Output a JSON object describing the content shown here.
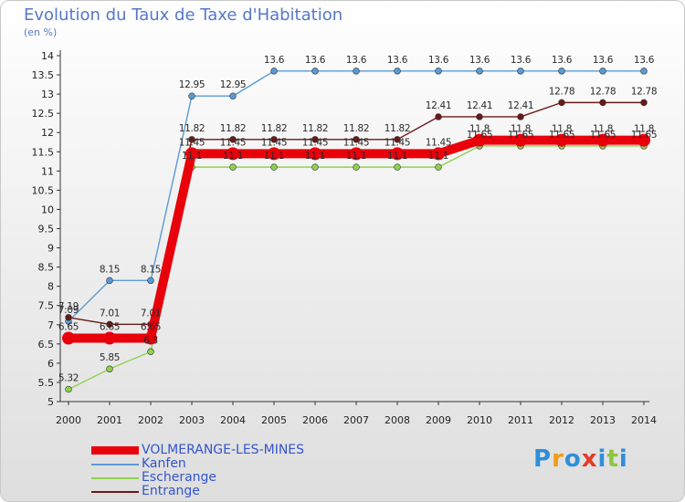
{
  "chart_data": {
    "type": "line",
    "title": "Evolution du Taux de Taxe d'Habitation",
    "ylabel": "(en %)",
    "xlabel": "",
    "ylim": [
      5,
      14
    ],
    "yticks": [
      "5",
      "5.5",
      "6",
      "6.5",
      "7",
      "7.5",
      "8",
      "8.5",
      "9",
      "9.5",
      "10",
      "10.5",
      "11",
      "11.5",
      "12",
      "12.5",
      "13",
      "13.5",
      "14"
    ],
    "categories": [
      "2000",
      "2001",
      "2002",
      "2003",
      "2004",
      "2005",
      "2006",
      "2007",
      "2008",
      "2009",
      "2010",
      "2011",
      "2012",
      "2013",
      "2014"
    ],
    "grid": false,
    "series": [
      {
        "name": "Kanfen",
        "color": "#5b9bd5",
        "values": [
          7.09,
          8.15,
          8.15,
          12.95,
          12.95,
          13.6,
          13.6,
          13.6,
          13.6,
          13.6,
          13.6,
          13.6,
          13.6,
          13.6,
          13.6
        ],
        "labels": [
          "7.09",
          "8.15",
          "8.15",
          "12.95",
          "12.95",
          "13.6",
          "13.6",
          "13.6",
          "13.6",
          "13.6",
          "13.6",
          "13.6",
          "13.6",
          "13.6",
          "13.6"
        ]
      },
      {
        "name": "Escherange",
        "color": "#8fd14f",
        "values": [
          5.32,
          5.85,
          6.3,
          11.1,
          11.1,
          11.1,
          11.1,
          11.1,
          11.1,
          11.1,
          11.65,
          11.65,
          11.65,
          11.65,
          11.65
        ],
        "labels": [
          "5.32",
          "5.85",
          "6.3",
          "11.1",
          "11.1",
          "11.1",
          "11.1",
          "11.1",
          "11.1",
          "11.1",
          "11.65",
          "11.65",
          "11.65",
          "11.65",
          "11.65"
        ]
      },
      {
        "name": "Entrange",
        "color": "#6b1818",
        "values": [
          7.19,
          7.01,
          7.01,
          11.82,
          11.82,
          11.82,
          11.82,
          11.82,
          11.82,
          12.41,
          12.41,
          12.41,
          12.78,
          12.78,
          12.78
        ],
        "labels": [
          "7.19",
          "7.01",
          "7.01",
          "11.82",
          "11.82",
          "11.82",
          "11.82",
          "11.82",
          "11.82",
          "12.41",
          "12.41",
          "12.41",
          "12.78",
          "12.78",
          "12.78"
        ]
      },
      {
        "name": "VOLMERANGE-LES-MINES",
        "color": "#e8000b",
        "values": [
          6.65,
          6.65,
          6.65,
          11.45,
          11.45,
          11.45,
          11.45,
          11.45,
          11.45,
          11.45,
          11.8,
          11.8,
          11.8,
          11.8,
          11.8
        ],
        "labels": [
          "6.65",
          "6.65",
          "6.65",
          "11.45",
          "11.45",
          "11.45",
          "11.45",
          "11.45",
          "11.45",
          "11.45",
          "11.8",
          "11.8",
          "11.8",
          "11.8",
          "11.8"
        ]
      }
    ]
  },
  "legend": [
    {
      "label": "VOLMERANGE-LES-MINES",
      "color": "#e8000b",
      "thick": true
    },
    {
      "label": "Kanfen",
      "color": "#5b9bd5",
      "thick": false
    },
    {
      "label": "Escherange",
      "color": "#8fd14f",
      "thick": false
    },
    {
      "label": "Entrange",
      "color": "#6b1818",
      "thick": false
    }
  ],
  "logo": {
    "text": "Proxiti",
    "letters": [
      "P",
      "r",
      "o",
      "x",
      "i",
      "t",
      "i"
    ],
    "colors": [
      "#2f8fd8",
      "#f39c12",
      "#2f8fd8",
      "#e23b2a",
      "#2f8fd8",
      "#8cc63f",
      "#2f8fd8"
    ]
  }
}
